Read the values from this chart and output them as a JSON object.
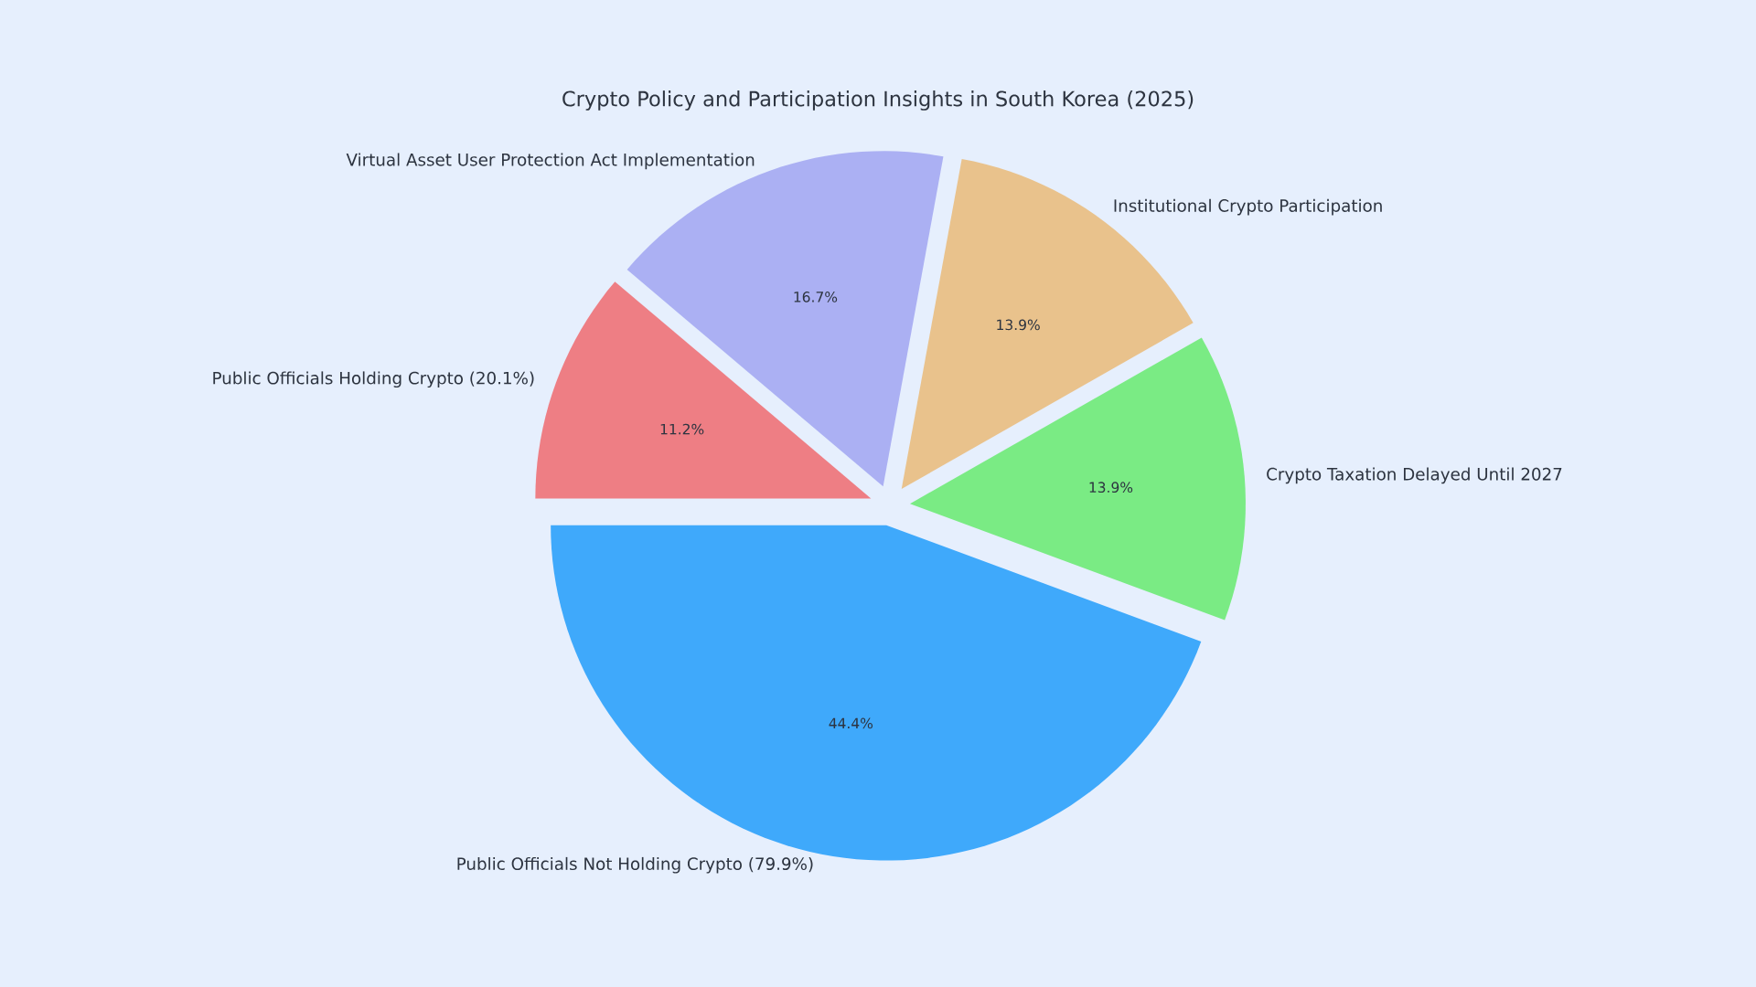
{
  "chart_data": {
    "type": "pie",
    "title": "Crypto Policy and Participation Insights in South Korea (2025)",
    "categories": [
      "Public Officials Not Holding Crypto (79.9%)",
      "Crypto Taxation Delayed Until 2027",
      "Institutional Crypto Participation",
      "Virtual Asset User Protection Act Implementation",
      "Public Officials Holding Crypto (20.1%)"
    ],
    "values": [
      44.4,
      13.9,
      13.9,
      16.7,
      11.2
    ],
    "value_labels": [
      "44.4%",
      "13.9%",
      "13.9%",
      "16.7%",
      "11.2%"
    ],
    "colors": [
      "#3fa9fb",
      "#7aeb84",
      "#e9c28c",
      "#abb0f3",
      "#ee7e84"
    ]
  }
}
